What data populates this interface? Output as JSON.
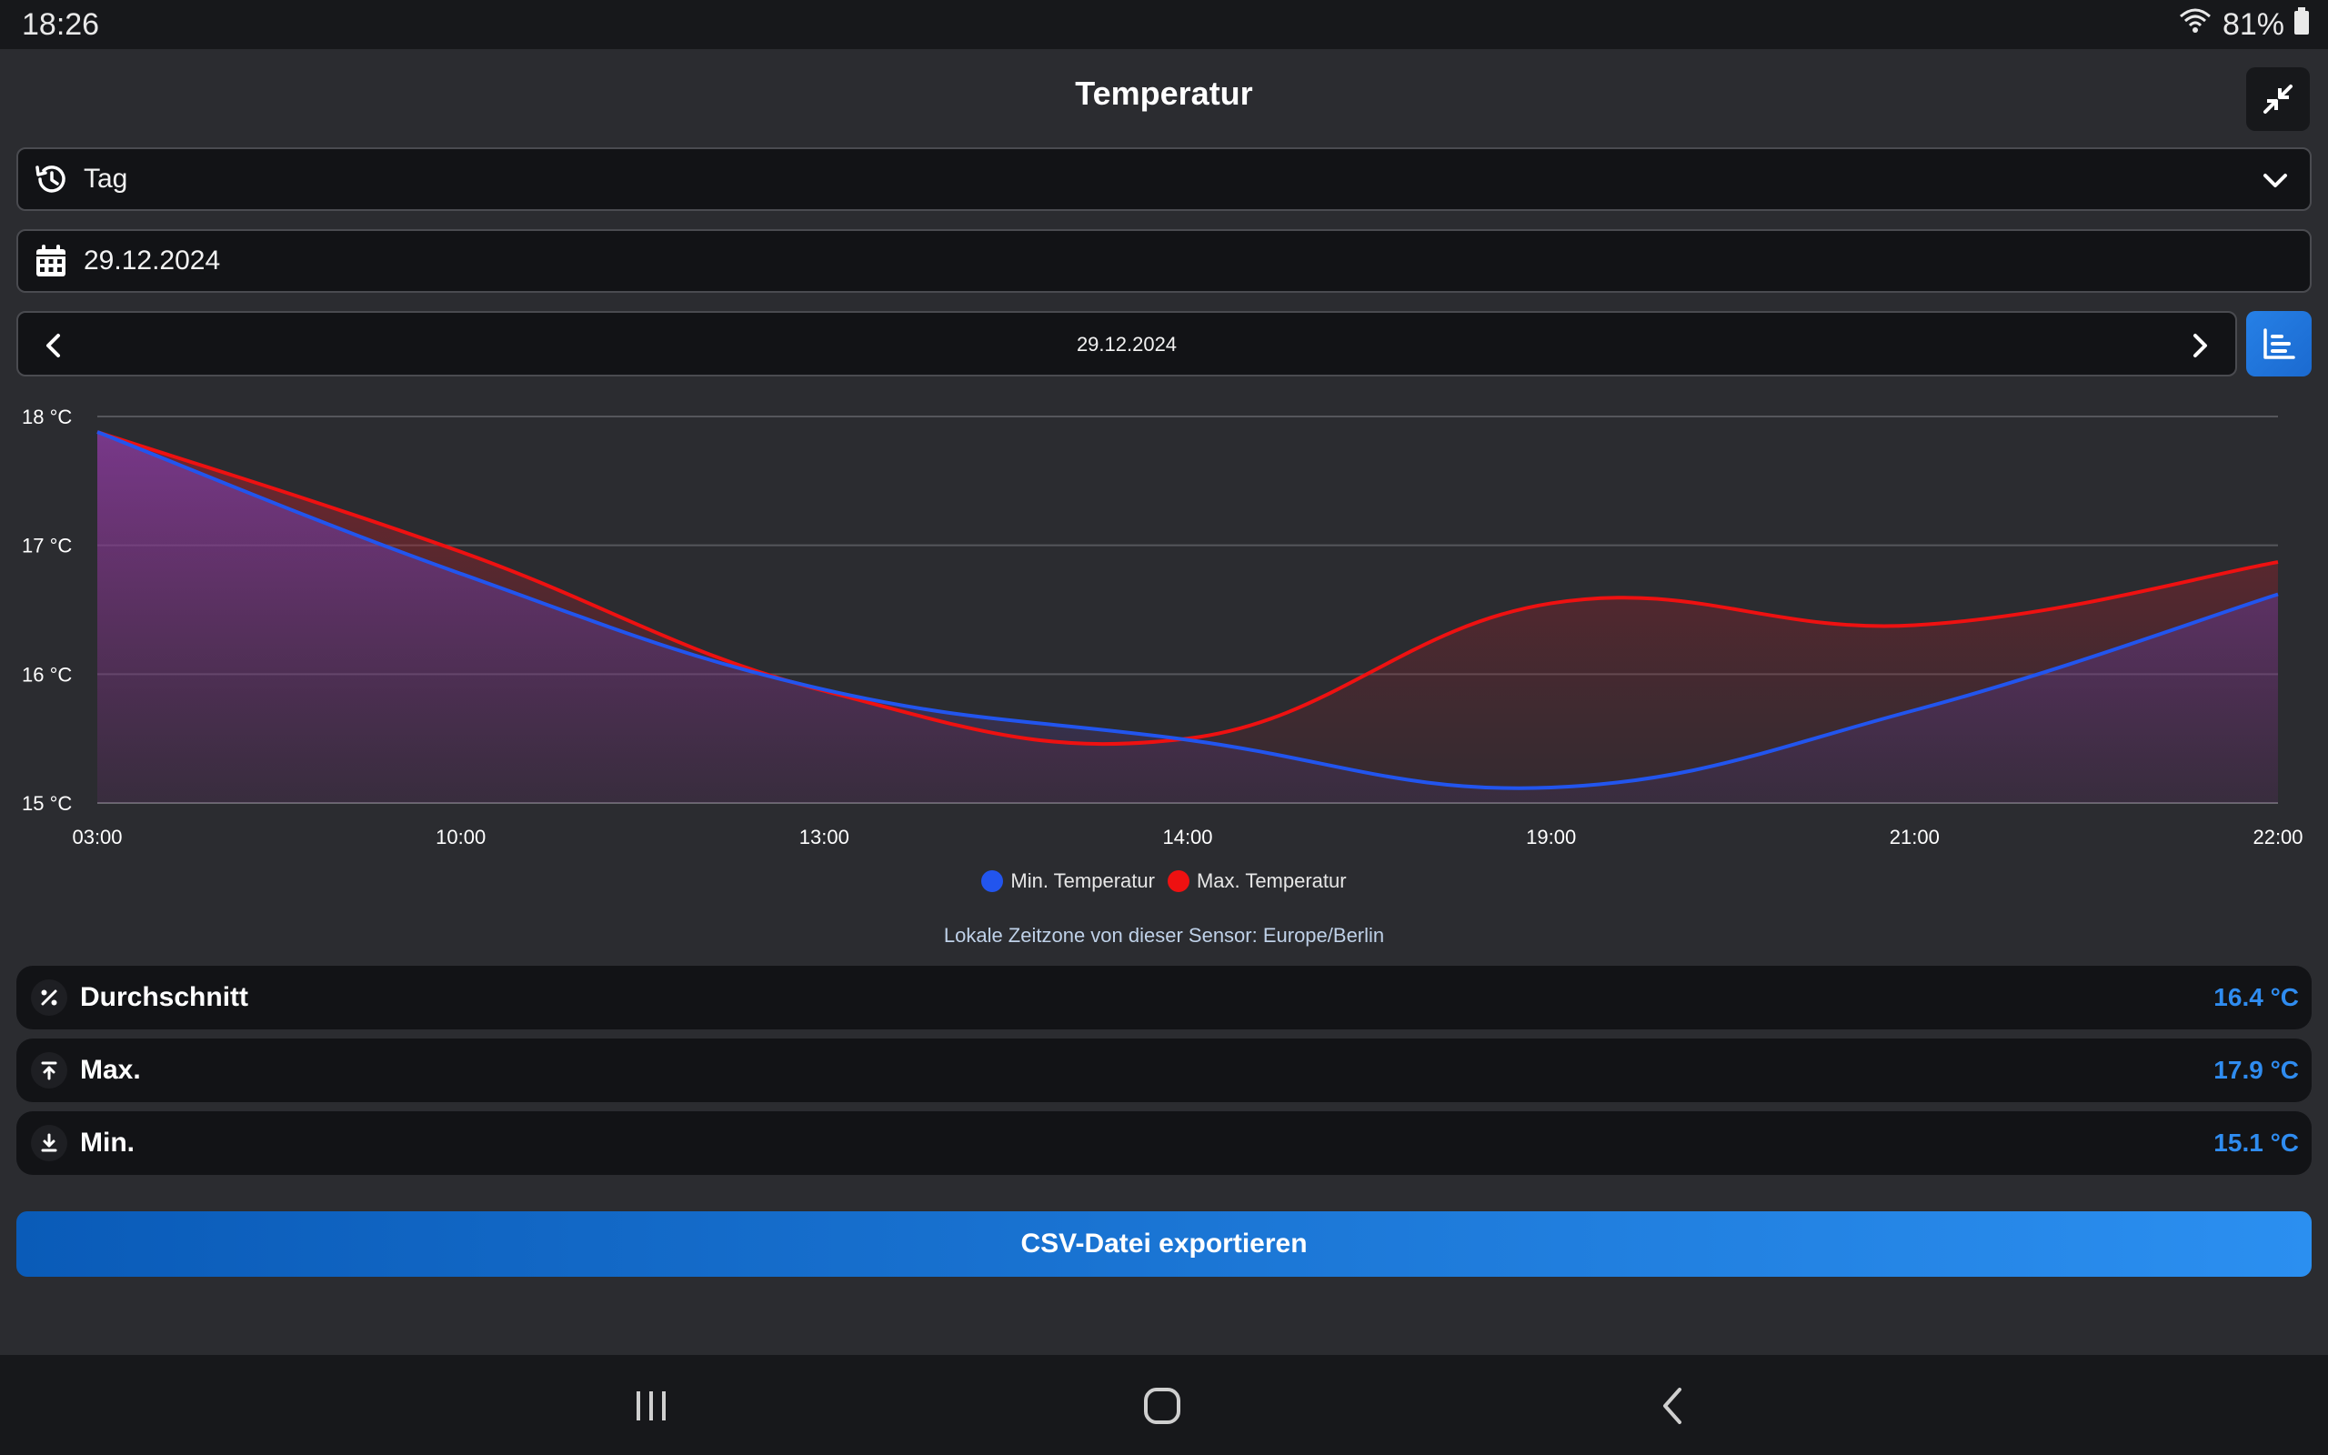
{
  "status_bar": {
    "time": "18:26",
    "battery": "81%"
  },
  "header": {
    "title": "Temperatur"
  },
  "period_select": {
    "value": "Tag"
  },
  "date_field": {
    "value": "29.12.2024"
  },
  "date_nav": {
    "label": "29.12.2024"
  },
  "chart_data": {
    "type": "area",
    "x": [
      "03:00",
      "10:00",
      "13:00",
      "14:00",
      "19:00",
      "21:00",
      "22:00"
    ],
    "y_ticks": [
      "18 °C",
      "17 °C",
      "16 °C",
      "15 °C"
    ],
    "ylim": [
      15,
      18
    ],
    "grid": true,
    "legend_position": "bottom",
    "series": [
      {
        "name": "Min. Temperatur",
        "color": "#2255ee",
        "values": [
          17.88,
          16.78,
          15.88,
          15.49,
          15.12,
          15.72,
          16.62
        ]
      },
      {
        "name": "Max. Temperatur",
        "color": "#ee1111",
        "values": [
          17.88,
          16.95,
          15.87,
          15.5,
          16.55,
          16.38,
          16.87
        ]
      }
    ]
  },
  "timezone_note": "Lokale Zeitzone von dieser Sensor: Europe/Berlin",
  "stats": [
    {
      "label": "Durchschnitt",
      "value": "16.4 °C",
      "icon": "percent-icon"
    },
    {
      "label": "Max.",
      "value": "17.9 °C",
      "icon": "arrow-up-bar-icon"
    },
    {
      "label": "Min.",
      "value": "15.1 °C",
      "icon": "arrow-down-bar-icon"
    }
  ],
  "export_button": {
    "label": "CSV-Datei exportieren"
  }
}
